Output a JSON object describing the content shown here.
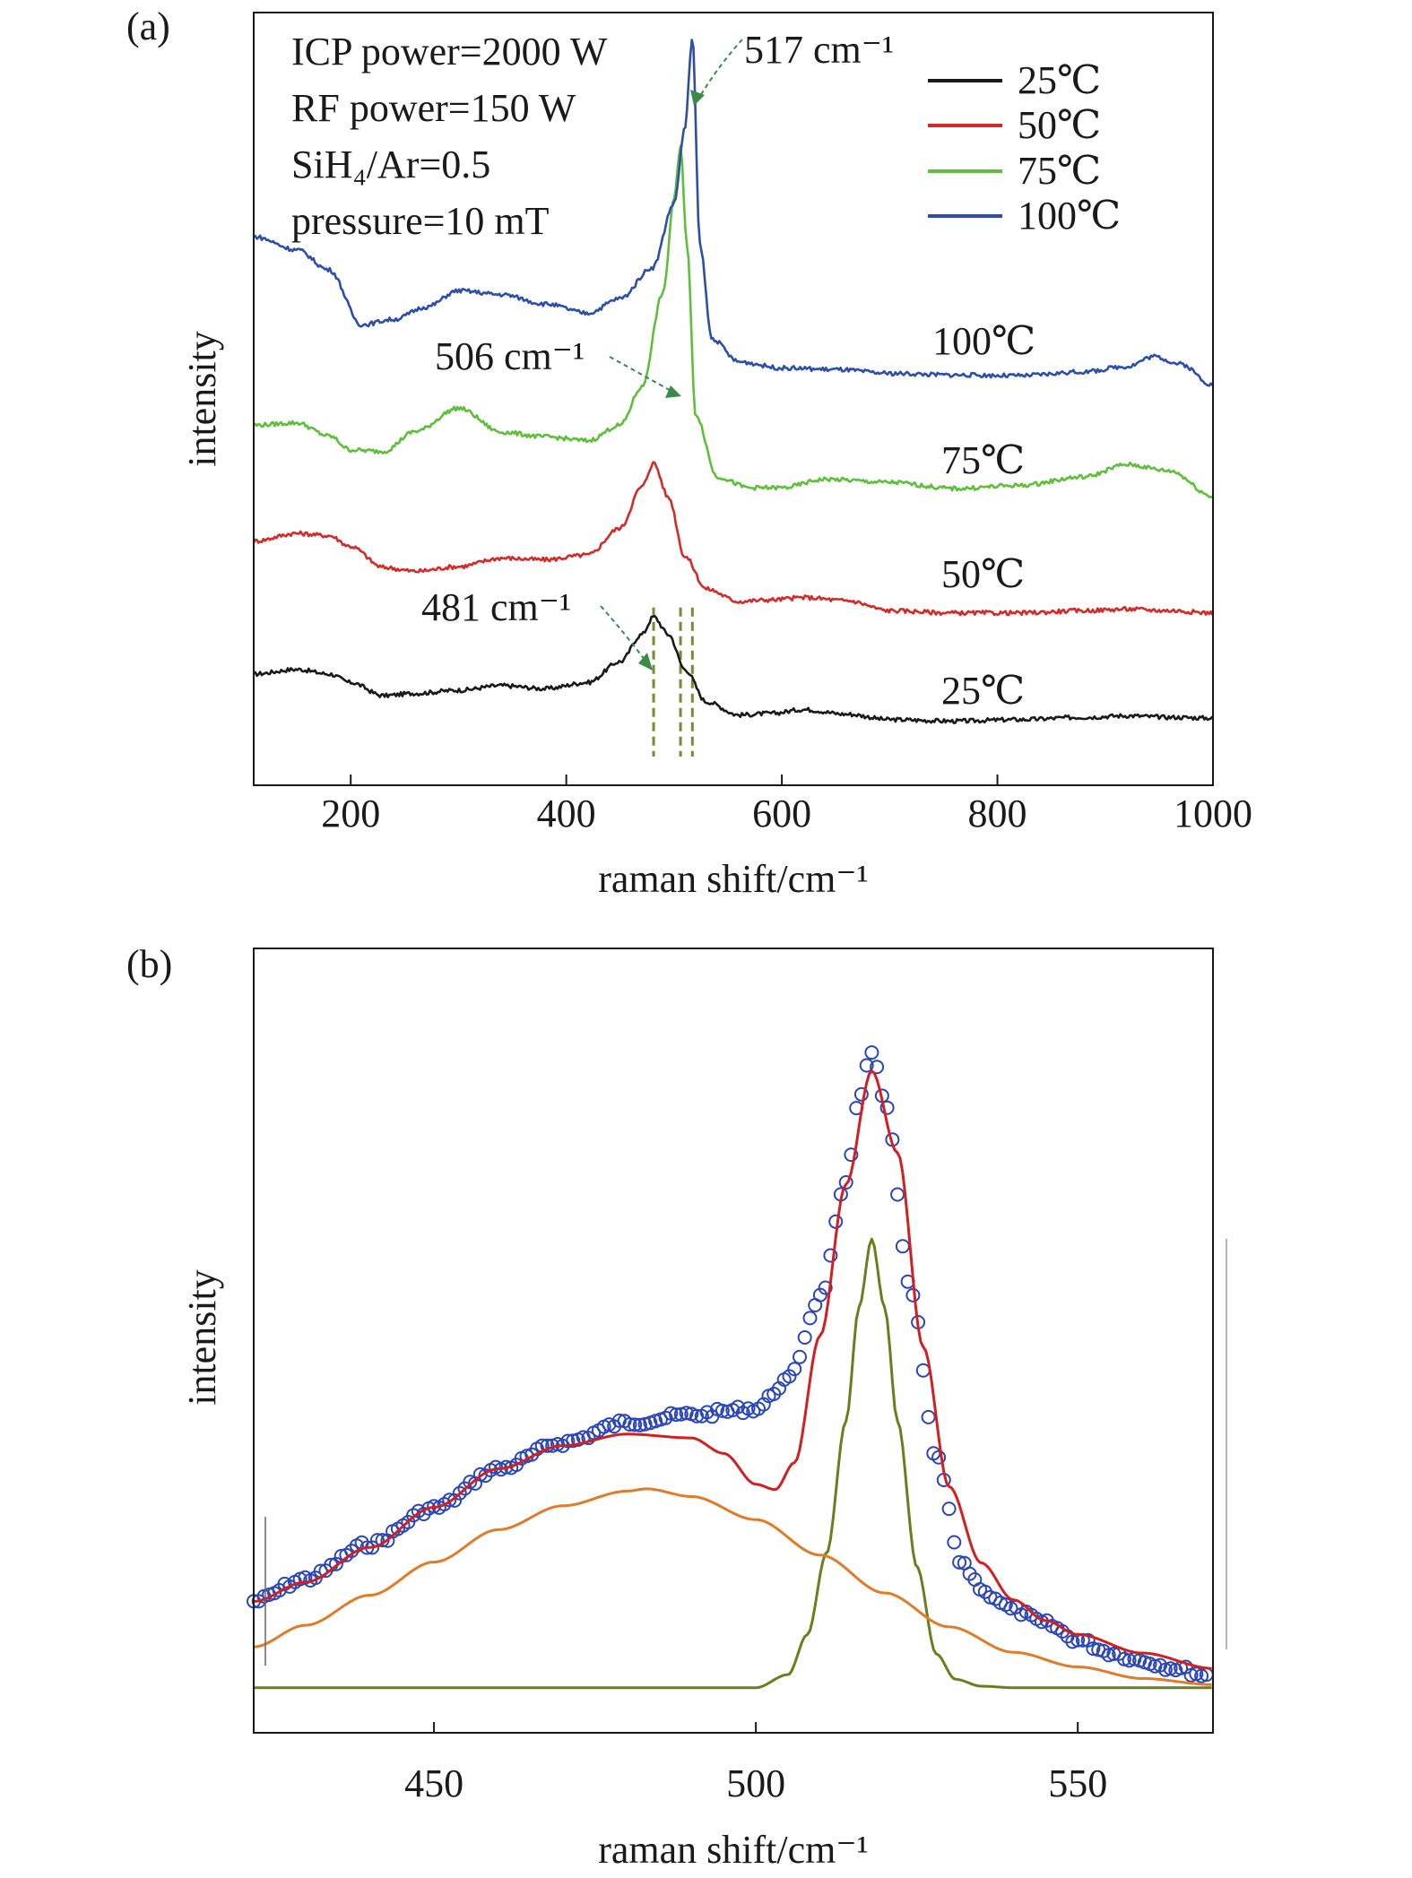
{
  "panels": [
    {
      "label": "(a)",
      "xlabel": "raman shift/cm⁻¹",
      "ylabel": "intensity",
      "conditions": [
        "ICP power=2000 W",
        "RF power=150 W",
        "SiH₄/Ar=0.5",
        "pressure=10 mT"
      ],
      "peak_labels": [
        "517 cm⁻¹",
        "506 cm⁻¹",
        "481 cm⁻¹"
      ],
      "curve_labels": [
        "100℃",
        "75℃",
        "50℃",
        "25℃"
      ],
      "legend": [
        "25℃",
        "50℃",
        "75℃",
        "100℃"
      ]
    },
    {
      "label": "(b)",
      "xlabel": "raman shift/cm⁻¹",
      "ylabel": "intensity"
    }
  ],
  "colors": {
    "s25": "#1a1a1a",
    "s50": "#d32a2a",
    "s75": "#5fbf3c",
    "s100": "#2e4fa8",
    "dashed": "#7a8a2e",
    "arrow": "#3c8a4a",
    "data_points": "#2b46b8",
    "fit_sum": "#d21f1f",
    "fit_amorphous": "#e07b2a",
    "fit_crystalline": "#6b7e1e"
  },
  "chart_data": [
    {
      "type": "line",
      "xlim": [
        110,
        1000
      ],
      "ylim": [
        0,
        100
      ],
      "xticks": [
        200,
        400,
        600,
        800,
        1000
      ],
      "yticks_shown": false,
      "series": [
        {
          "name": "25℃",
          "x": [
            110,
            150,
            180,
            200,
            230,
            260,
            300,
            340,
            380,
            420,
            450,
            470,
            481,
            495,
            510,
            530,
            560,
            590,
            620,
            660,
            700,
            760,
            820,
            880,
            920,
            960,
            1000
          ],
          "values": [
            14.4,
            15.0,
            14.4,
            13.3,
            11.6,
            11.9,
            12.3,
            12.9,
            12.5,
            13.3,
            16.0,
            19.5,
            21.8,
            19.5,
            15.0,
            10.8,
            9.1,
            9.3,
            9.8,
            9.2,
            8.5,
            8.3,
            8.5,
            8.8,
            9.0,
            8.8,
            8.7
          ]
        },
        {
          "name": "50℃",
          "x": [
            110,
            150,
            180,
            200,
            230,
            260,
            300,
            340,
            380,
            420,
            450,
            470,
            481,
            495,
            510,
            530,
            560,
            590,
            620,
            660,
            700,
            760,
            820,
            880,
            920,
            960,
            1000
          ],
          "values": [
            31.6,
            32.6,
            32.3,
            30.9,
            28.2,
            27.7,
            28.3,
            29.4,
            29.2,
            29.8,
            33.3,
            38.6,
            41.7,
            37.2,
            29.6,
            25.4,
            23.8,
            24.0,
            24.3,
            23.9,
            22.6,
            22.3,
            22.3,
            22.6,
            22.8,
            22.6,
            22.3
          ]
        },
        {
          "name": "75℃",
          "x": [
            110,
            150,
            180,
            200,
            230,
            260,
            300,
            340,
            380,
            420,
            450,
            470,
            490,
            500,
            506,
            512,
            520,
            540,
            570,
            600,
            640,
            700,
            760,
            820,
            880,
            920,
            960,
            1000
          ],
          "values": [
            46.6,
            46.9,
            45.2,
            43.4,
            43.2,
            45.8,
            48.8,
            45.7,
            45.1,
            44.6,
            46.6,
            51.5,
            63.8,
            76.0,
            82.5,
            70.0,
            48.0,
            39.9,
            38.5,
            38.5,
            39.6,
            39.2,
            38.4,
            38.8,
            39.9,
            41.5,
            40.7,
            37.4
          ]
        },
        {
          "name": "100℃",
          "x": [
            110,
            150,
            180,
            210,
            240,
            270,
            300,
            340,
            380,
            420,
            450,
            480,
            500,
            510,
            517,
            524,
            535,
            560,
            600,
            650,
            700,
            760,
            820,
            880,
            920,
            945,
            970,
            1000
          ],
          "values": [
            71.0,
            69.3,
            66.7,
            59.6,
            60.3,
            61.9,
            64.0,
            63.5,
            62.3,
            61.1,
            63.0,
            67.0,
            75.3,
            85.0,
            96.7,
            70.0,
            57.8,
            54.8,
            54.0,
            53.8,
            53.3,
            53.1,
            53.0,
            53.5,
            54.2,
            55.5,
            54.5,
            51.8
          ]
        }
      ],
      "peak_positions": [
        481,
        506,
        517
      ]
    },
    {
      "type": "scatter",
      "xlim": [
        422,
        571
      ],
      "ylim": [
        0,
        100
      ],
      "xticks": [
        450,
        500,
        550
      ],
      "yticks_shown": false,
      "series": [
        {
          "name": "data",
          "x": [
            422,
            430,
            440,
            450,
            460,
            470,
            480,
            490,
            500,
            505,
            510,
            514,
            516,
            518,
            520,
            524,
            528,
            532,
            536,
            540,
            545,
            550,
            555,
            560,
            565,
            570
          ],
          "values": [
            15.3,
            18.2,
            22.7,
            27.4,
            32.5,
            35.9,
            38.5,
            39.5,
            40.3,
            44.0,
            54.8,
            69.2,
            80.8,
            86.5,
            80.0,
            55.9,
            34.0,
            19.9,
            16.3,
            14.2,
            12.4,
            10.3,
            8.7,
            7.6,
            6.7,
            5.7
          ]
        },
        {
          "name": "fit",
          "x": [
            422,
            430,
            440,
            450,
            460,
            470,
            480,
            490,
            495,
            500,
            503,
            506,
            510,
            514,
            518,
            522,
            526,
            530,
            535,
            540,
            545,
            550,
            560,
            571
          ],
          "values": [
            15.3,
            17.8,
            22.3,
            27.5,
            32.5,
            35.5,
            37.0,
            36.5,
            34.5,
            30.5,
            29.8,
            33.3,
            49.8,
            69.4,
            84.1,
            73.5,
            48.3,
            30.2,
            20.3,
            15.5,
            12.8,
            11.0,
            8.6,
            6.6
          ]
        },
        {
          "name": "amorphous",
          "x": [
            422,
            430,
            440,
            450,
            460,
            470,
            480,
            483,
            490,
            500,
            510,
            520,
            530,
            540,
            550,
            560,
            571
          ],
          "values": [
            9.4,
            12.2,
            16.1,
            20.4,
            24.6,
            27.7,
            29.6,
            29.9,
            28.9,
            25.9,
            21.3,
            16.4,
            12.0,
            8.7,
            6.8,
            5.3,
            4.5
          ]
        },
        {
          "name": "crystalline",
          "x": [
            422,
            500,
            505,
            508,
            511,
            514,
            516,
            518,
            520,
            522,
            525,
            528,
            531,
            535,
            540,
            571
          ],
          "values": [
            4.1,
            4.1,
            5.8,
            11.0,
            21.6,
            38.7,
            53.4,
            62.3,
            53.4,
            38.7,
            19.8,
            8.5,
            5.2,
            4.3,
            4.1,
            4.1
          ]
        }
      ]
    }
  ]
}
